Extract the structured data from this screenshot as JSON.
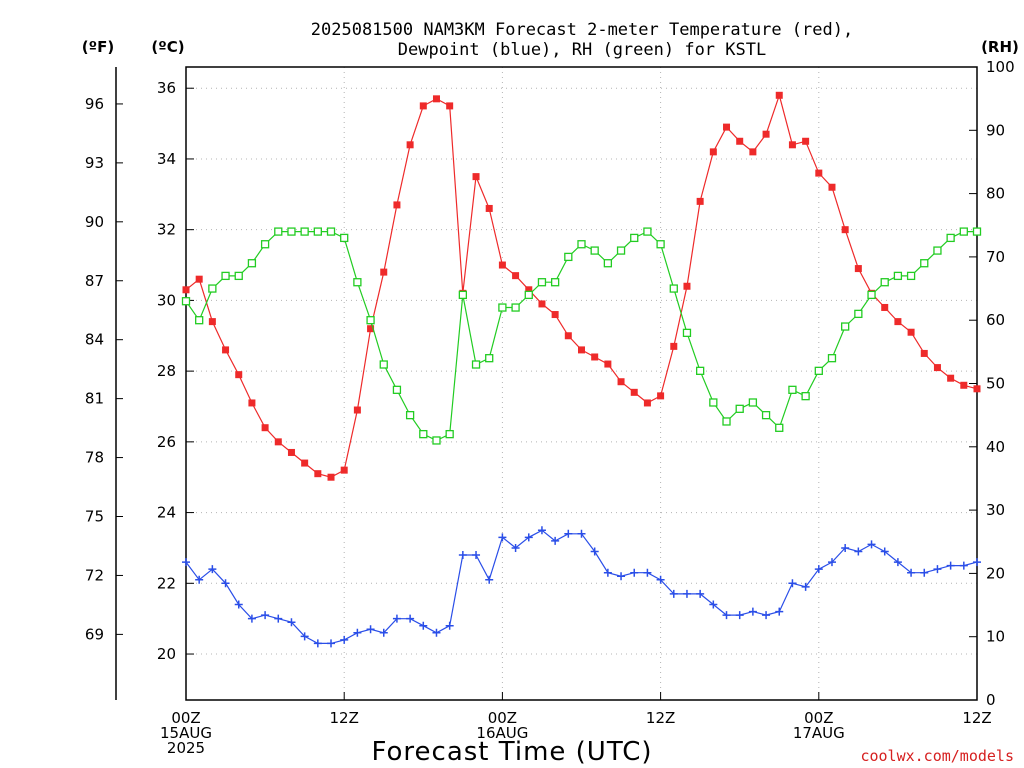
{
  "chart_data": {
    "type": "line",
    "title_line1": "2025081500 NAM3KM Forecast 2-meter Temperature (red),",
    "title_line2": "Dewpoint (blue), RH (green) for KSTL",
    "xlabel": "Forecast Time (UTC)",
    "credit": "coolwx.com/models",
    "credit_color": "#d62020",
    "units": {
      "f": "(ºF)",
      "c": "(ºC)",
      "rh": "(RH)"
    },
    "x_axis": {
      "hour_range": [
        0,
        60
      ],
      "ticks": [
        {
          "hour": 0,
          "lines": [
            "00Z",
            "15AUG",
            "2025"
          ]
        },
        {
          "hour": 12,
          "lines": [
            "12Z"
          ]
        },
        {
          "hour": 24,
          "lines": [
            "00Z",
            "16AUG"
          ]
        },
        {
          "hour": 36,
          "lines": [
            "12Z"
          ]
        },
        {
          "hour": 48,
          "lines": [
            "00Z",
            "17AUG"
          ]
        },
        {
          "hour": 60,
          "lines": [
            "12Z"
          ]
        }
      ]
    },
    "y_left_c": {
      "range": [
        18.7,
        36.6
      ],
      "ticks": [
        "20",
        "22",
        "24",
        "26",
        "28",
        "30",
        "32",
        "34",
        "36"
      ]
    },
    "y_left_f": {
      "ticks": [
        "69",
        "72",
        "75",
        "78",
        "81",
        "84",
        "87",
        "90",
        "93",
        "96"
      ]
    },
    "y_right_rh": {
      "range": [
        0,
        100
      ],
      "ticks": [
        "0",
        "10",
        "20",
        "30",
        "40",
        "50",
        "60",
        "70",
        "80",
        "90",
        "100"
      ]
    },
    "grid": true,
    "series": [
      {
        "name": "Temperature (red)",
        "axis": "c",
        "color": "#ee2a2a",
        "marker": "filled-square",
        "hours": [
          0,
          1,
          2,
          3,
          4,
          5,
          6,
          7,
          8,
          9,
          10,
          11,
          12,
          13,
          14,
          15,
          16,
          17,
          18,
          19,
          20,
          21,
          22,
          23,
          24,
          25,
          26,
          27,
          28,
          29,
          30,
          31,
          32,
          33,
          34,
          35,
          36,
          37,
          38,
          39,
          40,
          41,
          42,
          43,
          44,
          45,
          46,
          47,
          48,
          49,
          50,
          51,
          52,
          53,
          54,
          55,
          56,
          57,
          58,
          59,
          60
        ],
        "values": [
          30.3,
          30.6,
          29.4,
          28.6,
          27.9,
          27.1,
          26.4,
          26.0,
          25.7,
          25.4,
          25.1,
          25.0,
          25.2,
          26.9,
          29.2,
          30.8,
          32.7,
          34.4,
          35.5,
          35.7,
          35.5,
          30.2,
          33.5,
          32.6,
          31.0,
          30.7,
          30.3,
          29.9,
          29.6,
          29.0,
          28.6,
          28.4,
          28.2,
          27.7,
          27.4,
          27.1,
          27.3,
          28.7,
          30.4,
          32.8,
          34.2,
          34.9,
          34.5,
          34.2,
          34.7,
          35.8,
          34.4,
          34.5,
          33.6,
          33.2,
          32.0,
          30.9,
          30.2,
          29.8,
          29.4,
          29.1,
          28.5,
          28.1,
          27.8,
          27.6,
          27.5
        ]
      },
      {
        "name": "Dewpoint (blue)",
        "axis": "c",
        "color": "#2a4ee8",
        "marker": "plus",
        "hours": [
          0,
          1,
          2,
          3,
          4,
          5,
          6,
          7,
          8,
          9,
          10,
          11,
          12,
          13,
          14,
          15,
          16,
          17,
          18,
          19,
          20,
          21,
          22,
          23,
          24,
          25,
          26,
          27,
          28,
          29,
          30,
          31,
          32,
          33,
          34,
          35,
          36,
          37,
          38,
          39,
          40,
          41,
          42,
          43,
          44,
          45,
          46,
          47,
          48,
          49,
          50,
          51,
          52,
          53,
          54,
          55,
          56,
          57,
          58,
          59,
          60
        ],
        "values": [
          22.6,
          22.1,
          22.4,
          22.0,
          21.4,
          21.0,
          21.1,
          21.0,
          20.9,
          20.5,
          20.3,
          20.3,
          20.4,
          20.6,
          20.7,
          20.6,
          21.0,
          21.0,
          20.8,
          20.6,
          20.8,
          22.8,
          22.8,
          22.1,
          23.3,
          23.0,
          23.3,
          23.5,
          23.2,
          23.4,
          23.4,
          22.9,
          22.3,
          22.2,
          22.3,
          22.3,
          22.1,
          21.7,
          21.7,
          21.7,
          21.4,
          21.1,
          21.1,
          21.2,
          21.1,
          21.2,
          22.0,
          21.9,
          22.4,
          22.6,
          23.0,
          22.9,
          23.1,
          22.9,
          22.6,
          22.3,
          22.3,
          22.4,
          22.5,
          22.5,
          22.6
        ]
      },
      {
        "name": "RH (green)",
        "axis": "rh",
        "color": "#22cc22",
        "marker": "open-square",
        "hours": [
          0,
          1,
          2,
          3,
          4,
          5,
          6,
          7,
          8,
          9,
          10,
          11,
          12,
          13,
          14,
          15,
          16,
          17,
          18,
          19,
          20,
          21,
          22,
          23,
          24,
          25,
          26,
          27,
          28,
          29,
          30,
          31,
          32,
          33,
          34,
          35,
          36,
          37,
          38,
          39,
          40,
          41,
          42,
          43,
          44,
          45,
          46,
          47,
          48,
          49,
          50,
          51,
          52,
          53,
          54,
          55,
          56,
          57,
          58,
          59,
          60
        ],
        "values": [
          63,
          60,
          65,
          67,
          67,
          69,
          72,
          74,
          74,
          74,
          74,
          74,
          73,
          66,
          60,
          53,
          49,
          45,
          42,
          41,
          42,
          64,
          53,
          54,
          62,
          62,
          64,
          66,
          66,
          70,
          72,
          71,
          69,
          71,
          73,
          74,
          72,
          65,
          58,
          52,
          47,
          44,
          46,
          47,
          45,
          43,
          49,
          48,
          52,
          54,
          59,
          61,
          64,
          66,
          67,
          67,
          69,
          71,
          73,
          74,
          74
        ]
      }
    ]
  }
}
